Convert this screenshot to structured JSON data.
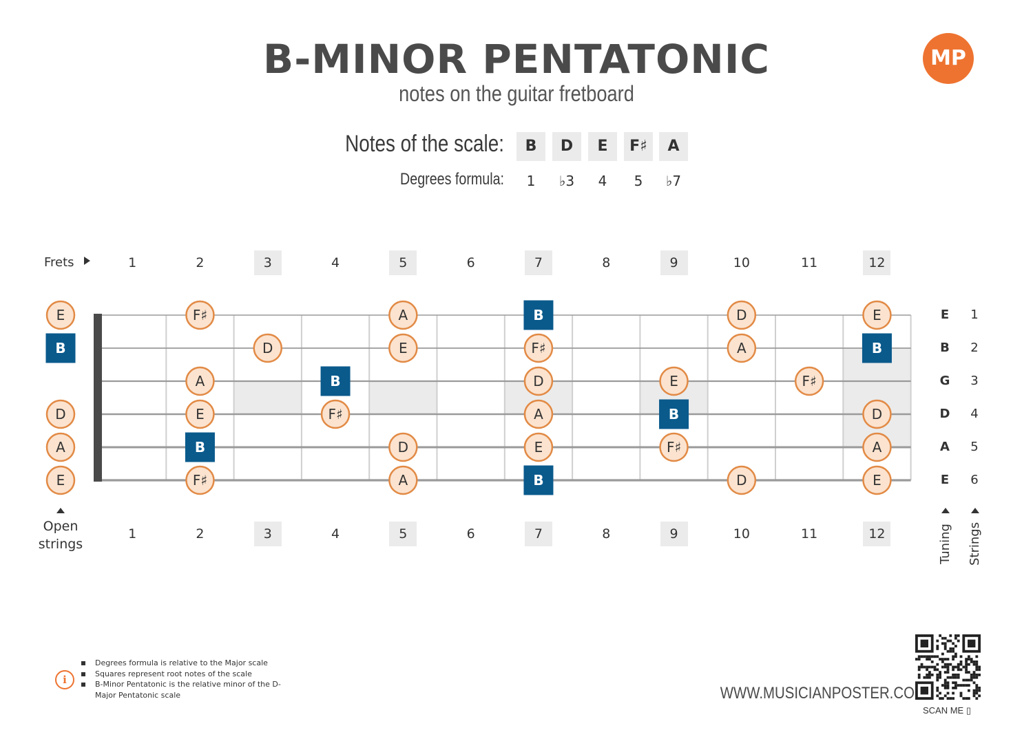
{
  "header": {
    "title": "B-MINOR PENTATONIC",
    "subtitle": "notes on the guitar fretboard",
    "logo": "MP"
  },
  "scale": {
    "notes_label": "Notes of the scale:",
    "degrees_label": "Degrees formula:",
    "notes": [
      "B",
      "D",
      "E",
      "F♯",
      "A"
    ],
    "degrees": [
      "1",
      "♭3",
      "4",
      "5",
      "♭7"
    ]
  },
  "fretboard": {
    "frets_label": "Frets",
    "fret_numbers": [
      "1",
      "2",
      "3",
      "4",
      "5",
      "6",
      "7",
      "8",
      "9",
      "10",
      "11",
      "12"
    ],
    "highlighted_frets": [
      3,
      5,
      7,
      9,
      12
    ],
    "open_label_line1": "Open",
    "open_label_line2": "strings",
    "tuning": [
      "E",
      "B",
      "G",
      "D",
      "A",
      "E"
    ],
    "string_numbers": [
      "1",
      "2",
      "3",
      "4",
      "5",
      "6"
    ],
    "tuning_label": "Tuning",
    "strings_label": "Strings",
    "notes": [
      {
        "string": 1,
        "fret": 0,
        "note": "E",
        "root": false
      },
      {
        "string": 1,
        "fret": 2,
        "note": "F♯",
        "root": false
      },
      {
        "string": 1,
        "fret": 5,
        "note": "A",
        "root": false
      },
      {
        "string": 1,
        "fret": 7,
        "note": "B",
        "root": true
      },
      {
        "string": 1,
        "fret": 10,
        "note": "D",
        "root": false
      },
      {
        "string": 1,
        "fret": 12,
        "note": "E",
        "root": false
      },
      {
        "string": 2,
        "fret": 0,
        "note": "B",
        "root": true
      },
      {
        "string": 2,
        "fret": 3,
        "note": "D",
        "root": false
      },
      {
        "string": 2,
        "fret": 5,
        "note": "E",
        "root": false
      },
      {
        "string": 2,
        "fret": 7,
        "note": "F♯",
        "root": false
      },
      {
        "string": 2,
        "fret": 10,
        "note": "A",
        "root": false
      },
      {
        "string": 2,
        "fret": 12,
        "note": "B",
        "root": true
      },
      {
        "string": 3,
        "fret": 2,
        "note": "A",
        "root": false
      },
      {
        "string": 3,
        "fret": 4,
        "note": "B",
        "root": true
      },
      {
        "string": 3,
        "fret": 7,
        "note": "D",
        "root": false
      },
      {
        "string": 3,
        "fret": 9,
        "note": "E",
        "root": false
      },
      {
        "string": 3,
        "fret": 11,
        "note": "F♯",
        "root": false
      },
      {
        "string": 4,
        "fret": 0,
        "note": "D",
        "root": false
      },
      {
        "string": 4,
        "fret": 2,
        "note": "E",
        "root": false
      },
      {
        "string": 4,
        "fret": 4,
        "note": "F♯",
        "root": false
      },
      {
        "string": 4,
        "fret": 7,
        "note": "A",
        "root": false
      },
      {
        "string": 4,
        "fret": 9,
        "note": "B",
        "root": true
      },
      {
        "string": 4,
        "fret": 12,
        "note": "D",
        "root": false
      },
      {
        "string": 5,
        "fret": 0,
        "note": "A",
        "root": false
      },
      {
        "string": 5,
        "fret": 2,
        "note": "B",
        "root": true
      },
      {
        "string": 5,
        "fret": 5,
        "note": "D",
        "root": false
      },
      {
        "string": 5,
        "fret": 7,
        "note": "E",
        "root": false
      },
      {
        "string": 5,
        "fret": 9,
        "note": "F♯",
        "root": false
      },
      {
        "string": 5,
        "fret": 12,
        "note": "A",
        "root": false
      },
      {
        "string": 6,
        "fret": 0,
        "note": "E",
        "root": false
      },
      {
        "string": 6,
        "fret": 2,
        "note": "F♯",
        "root": false
      },
      {
        "string": 6,
        "fret": 5,
        "note": "A",
        "root": false
      },
      {
        "string": 6,
        "fret": 7,
        "note": "B",
        "root": true
      },
      {
        "string": 6,
        "fret": 10,
        "note": "D",
        "root": false
      },
      {
        "string": 6,
        "fret": 12,
        "note": "E",
        "root": false
      }
    ]
  },
  "footer": {
    "notes": [
      "Degrees formula is relative to the Major scale",
      "Squares represent root notes of the scale",
      "B-Minor Pentatonic is the relative minor of the D-Major Pentatonic scale"
    ],
    "website": "WWW.MUSICIANPOSTER.COM",
    "scan_label": "SCAN ME"
  },
  "colors": {
    "root": "#0a5a8c",
    "note_fill": "#fbe3cf",
    "note_border": "#e28a45",
    "accent": "#ee7330",
    "fret_highlight": "#ebebeb"
  }
}
